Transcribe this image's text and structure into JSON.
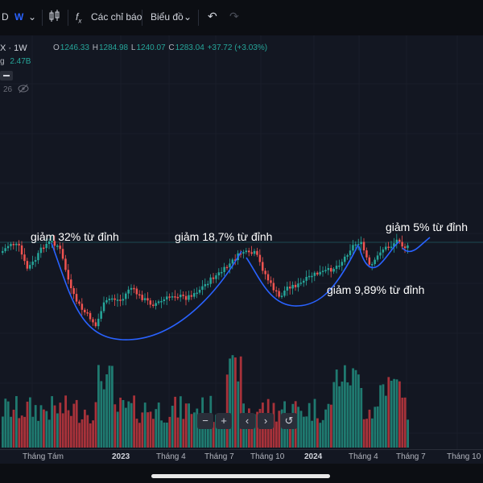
{
  "toolbar": {
    "interval_d": "D",
    "interval_w": "W",
    "indicators_label": "Các chỉ báo",
    "chart_type_label": "Biểu đồ"
  },
  "legend": {
    "symbol_interval": "X · 1W",
    "ohlc": {
      "o_label": "O",
      "o": "1246.33",
      "h_label": "H",
      "h": "1284.98",
      "l_label": "L",
      "l": "1240.07",
      "c_label": "C",
      "c": "1283.04",
      "change": "+37.72 (+3.03%)"
    },
    "volume_label": "g",
    "volume_value": "2.47B",
    "ma_value": "26"
  },
  "annotations": [
    "giảm 32% từ đỉnh",
    "giảm 18,7% từ đỉnh",
    "giảm 9,89% từ đỉnh",
    "giảm 5% từ đỉnh"
  ],
  "time_axis": [
    "Tháng Tám",
    "2023",
    "Tháng 4",
    "Tháng 7",
    "Tháng 10",
    "2024",
    "Tháng 4",
    "Tháng 7",
    "Tháng 10"
  ],
  "colors": {
    "up": "#26a69a",
    "down": "#ef5350",
    "up_vol": "#1f7a70",
    "down_vol": "#a8323a",
    "curve": "#2962ff",
    "background": "#131722"
  }
}
